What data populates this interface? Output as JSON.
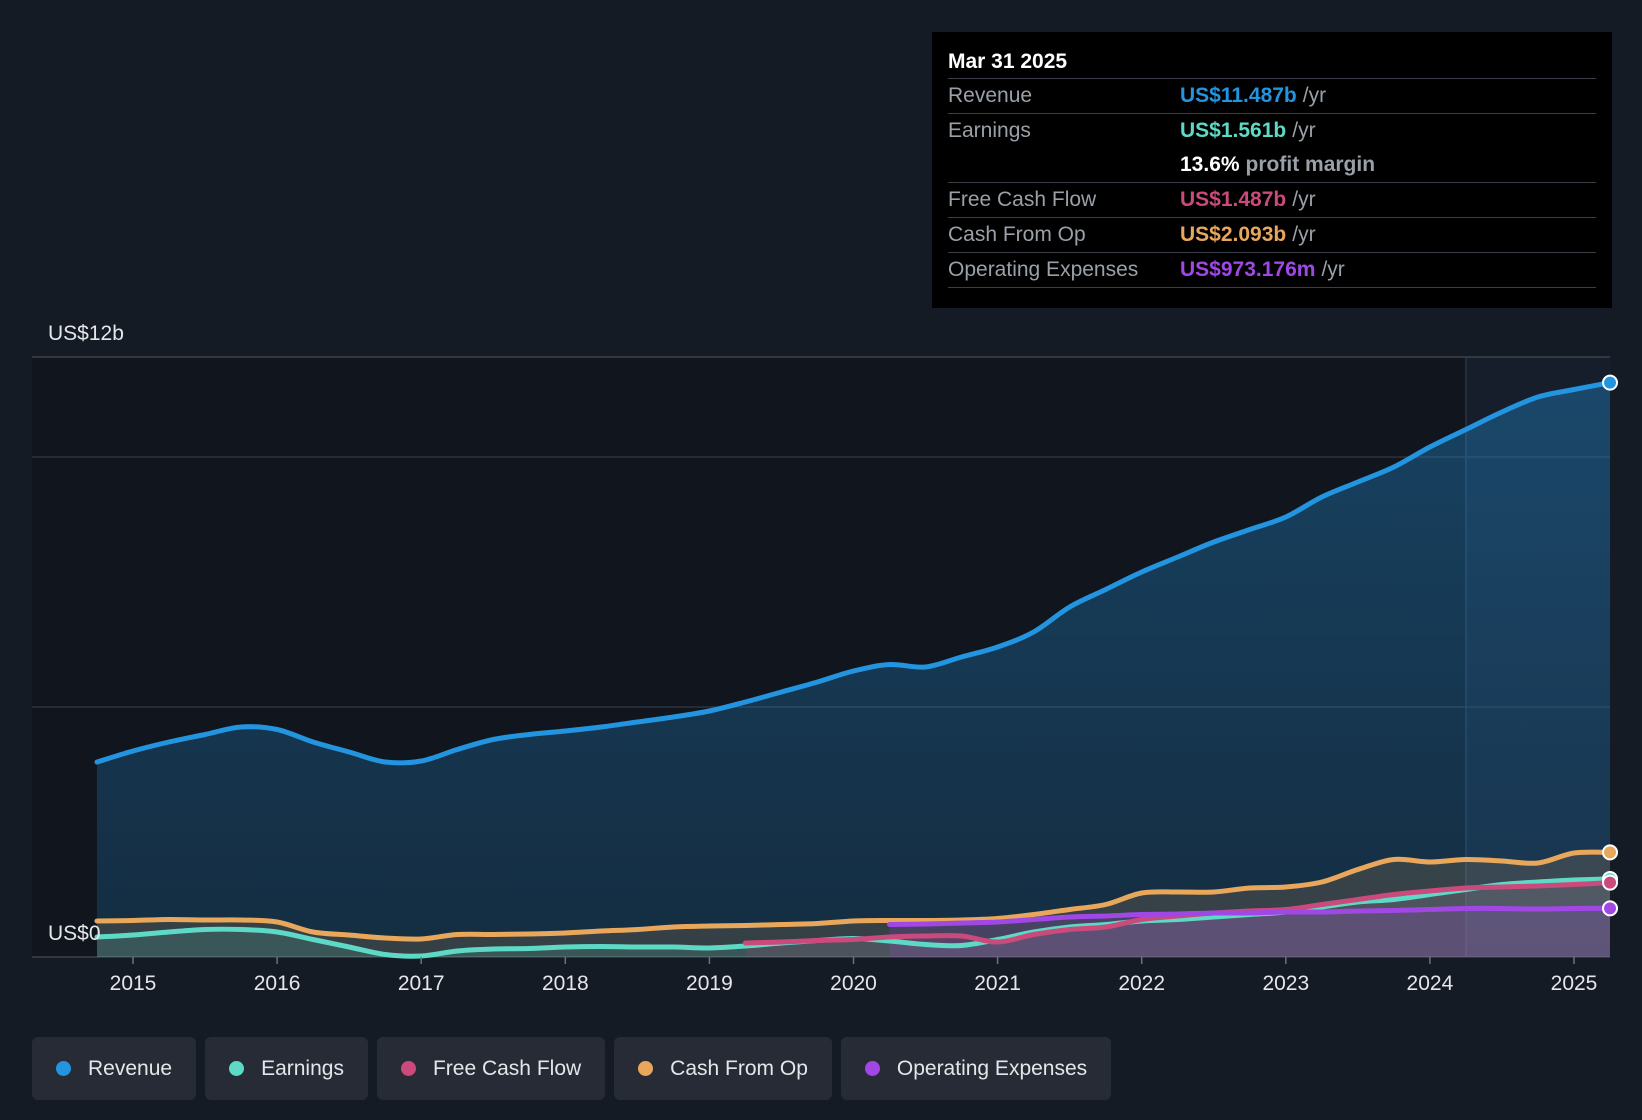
{
  "chart_data": {
    "type": "area",
    "title": "",
    "y_top_label": "US$12b",
    "y_bottom_label": "US$0",
    "ylim": [
      0,
      12
    ],
    "xlim": [
      2014.7,
      2025.25
    ],
    "x_ticks": [
      "2015",
      "2016",
      "2017",
      "2018",
      "2019",
      "2020",
      "2021",
      "2022",
      "2023",
      "2024",
      "2025"
    ],
    "series": [
      {
        "name": "Revenue",
        "key": "revenue",
        "color": "#2394e0",
        "points": [
          [
            2014.75,
            3.9
          ],
          [
            2015.0,
            4.12
          ],
          [
            2015.25,
            4.3
          ],
          [
            2015.5,
            4.45
          ],
          [
            2015.75,
            4.6
          ],
          [
            2016.0,
            4.55
          ],
          [
            2016.25,
            4.3
          ],
          [
            2016.5,
            4.1
          ],
          [
            2016.75,
            3.9
          ],
          [
            2017.0,
            3.92
          ],
          [
            2017.25,
            4.15
          ],
          [
            2017.5,
            4.35
          ],
          [
            2017.75,
            4.45
          ],
          [
            2018.0,
            4.52
          ],
          [
            2018.25,
            4.6
          ],
          [
            2018.5,
            4.7
          ],
          [
            2018.75,
            4.8
          ],
          [
            2019.0,
            4.92
          ],
          [
            2019.25,
            5.1
          ],
          [
            2019.5,
            5.3
          ],
          [
            2019.75,
            5.5
          ],
          [
            2020.0,
            5.72
          ],
          [
            2020.25,
            5.85
          ],
          [
            2020.5,
            5.8
          ],
          [
            2020.75,
            6.0
          ],
          [
            2021.0,
            6.2
          ],
          [
            2021.25,
            6.5
          ],
          [
            2021.5,
            7.0
          ],
          [
            2021.75,
            7.35
          ],
          [
            2022.0,
            7.7
          ],
          [
            2022.25,
            8.0
          ],
          [
            2022.5,
            8.3
          ],
          [
            2022.75,
            8.55
          ],
          [
            2023.0,
            8.8
          ],
          [
            2023.25,
            9.2
          ],
          [
            2023.5,
            9.5
          ],
          [
            2023.75,
            9.8
          ],
          [
            2024.0,
            10.2
          ],
          [
            2024.25,
            10.55
          ],
          [
            2024.5,
            10.9
          ],
          [
            2024.75,
            11.2
          ],
          [
            2025.0,
            11.35
          ],
          [
            2025.25,
            11.487
          ]
        ]
      },
      {
        "name": "Earnings",
        "key": "earnings",
        "color": "#5ed9c6",
        "points": [
          [
            2014.75,
            0.4
          ],
          [
            2015.0,
            0.44
          ],
          [
            2015.25,
            0.5
          ],
          [
            2015.5,
            0.55
          ],
          [
            2015.75,
            0.55
          ],
          [
            2016.0,
            0.5
          ],
          [
            2016.25,
            0.35
          ],
          [
            2016.5,
            0.2
          ],
          [
            2016.75,
            0.05
          ],
          [
            2017.0,
            0.02
          ],
          [
            2017.25,
            0.12
          ],
          [
            2017.5,
            0.16
          ],
          [
            2017.75,
            0.17
          ],
          [
            2018.0,
            0.2
          ],
          [
            2018.25,
            0.21
          ],
          [
            2018.5,
            0.2
          ],
          [
            2018.75,
            0.2
          ],
          [
            2019.0,
            0.18
          ],
          [
            2019.25,
            0.22
          ],
          [
            2019.5,
            0.28
          ],
          [
            2019.75,
            0.33
          ],
          [
            2020.0,
            0.37
          ],
          [
            2020.25,
            0.32
          ],
          [
            2020.5,
            0.25
          ],
          [
            2020.75,
            0.23
          ],
          [
            2021.0,
            0.35
          ],
          [
            2021.25,
            0.5
          ],
          [
            2021.5,
            0.6
          ],
          [
            2021.75,
            0.65
          ],
          [
            2022.0,
            0.72
          ],
          [
            2022.25,
            0.75
          ],
          [
            2022.5,
            0.8
          ],
          [
            2022.75,
            0.85
          ],
          [
            2023.0,
            0.9
          ],
          [
            2023.25,
            1.0
          ],
          [
            2023.5,
            1.1
          ],
          [
            2023.75,
            1.15
          ],
          [
            2024.0,
            1.25
          ],
          [
            2024.25,
            1.35
          ],
          [
            2024.5,
            1.45
          ],
          [
            2024.75,
            1.5
          ],
          [
            2025.0,
            1.54
          ],
          [
            2025.25,
            1.561
          ]
        ]
      },
      {
        "name": "Free Cash Flow",
        "key": "fcf",
        "color": "#c94a7b",
        "points": [
          [
            2019.25,
            0.28
          ],
          [
            2019.5,
            0.3
          ],
          [
            2019.75,
            0.33
          ],
          [
            2020.0,
            0.35
          ],
          [
            2020.25,
            0.4
          ],
          [
            2020.5,
            0.42
          ],
          [
            2020.75,
            0.42
          ],
          [
            2021.0,
            0.3
          ],
          [
            2021.25,
            0.45
          ],
          [
            2021.5,
            0.55
          ],
          [
            2021.75,
            0.6
          ],
          [
            2022.0,
            0.75
          ],
          [
            2022.25,
            0.82
          ],
          [
            2022.5,
            0.88
          ],
          [
            2022.75,
            0.92
          ],
          [
            2023.0,
            0.95
          ],
          [
            2023.25,
            1.05
          ],
          [
            2023.5,
            1.15
          ],
          [
            2023.75,
            1.25
          ],
          [
            2024.0,
            1.32
          ],
          [
            2024.25,
            1.38
          ],
          [
            2024.5,
            1.4
          ],
          [
            2024.75,
            1.42
          ],
          [
            2025.0,
            1.45
          ],
          [
            2025.25,
            1.487
          ]
        ]
      },
      {
        "name": "Cash From Op",
        "key": "cfo",
        "color": "#e9a75b",
        "points": [
          [
            2014.75,
            0.72
          ],
          [
            2015.0,
            0.73
          ],
          [
            2015.25,
            0.75
          ],
          [
            2015.5,
            0.74
          ],
          [
            2015.75,
            0.74
          ],
          [
            2016.0,
            0.7
          ],
          [
            2016.25,
            0.5
          ],
          [
            2016.5,
            0.44
          ],
          [
            2016.75,
            0.38
          ],
          [
            2017.0,
            0.36
          ],
          [
            2017.25,
            0.45
          ],
          [
            2017.5,
            0.45
          ],
          [
            2017.75,
            0.46
          ],
          [
            2018.0,
            0.48
          ],
          [
            2018.25,
            0.52
          ],
          [
            2018.5,
            0.55
          ],
          [
            2018.75,
            0.6
          ],
          [
            2019.0,
            0.62
          ],
          [
            2019.25,
            0.63
          ],
          [
            2019.5,
            0.65
          ],
          [
            2019.75,
            0.67
          ],
          [
            2020.0,
            0.72
          ],
          [
            2020.25,
            0.73
          ],
          [
            2020.5,
            0.73
          ],
          [
            2020.75,
            0.74
          ],
          [
            2021.0,
            0.77
          ],
          [
            2021.25,
            0.85
          ],
          [
            2021.5,
            0.95
          ],
          [
            2021.75,
            1.05
          ],
          [
            2022.0,
            1.28
          ],
          [
            2022.25,
            1.3
          ],
          [
            2022.5,
            1.3
          ],
          [
            2022.75,
            1.38
          ],
          [
            2023.0,
            1.4
          ],
          [
            2023.25,
            1.5
          ],
          [
            2023.5,
            1.75
          ],
          [
            2023.75,
            1.95
          ],
          [
            2024.0,
            1.9
          ],
          [
            2024.25,
            1.95
          ],
          [
            2024.5,
            1.92
          ],
          [
            2024.75,
            1.88
          ],
          [
            2025.0,
            2.08
          ],
          [
            2025.25,
            2.093
          ]
        ]
      },
      {
        "name": "Operating Expenses",
        "key": "opex",
        "color": "#a047e6",
        "points": [
          [
            2020.25,
            0.65
          ],
          [
            2020.5,
            0.66
          ],
          [
            2020.75,
            0.68
          ],
          [
            2021.0,
            0.7
          ],
          [
            2021.25,
            0.75
          ],
          [
            2021.5,
            0.8
          ],
          [
            2021.75,
            0.82
          ],
          [
            2022.0,
            0.85
          ],
          [
            2022.25,
            0.86
          ],
          [
            2022.5,
            0.88
          ],
          [
            2022.75,
            0.88
          ],
          [
            2023.0,
            0.9
          ],
          [
            2023.25,
            0.9
          ],
          [
            2023.5,
            0.92
          ],
          [
            2023.75,
            0.93
          ],
          [
            2024.0,
            0.95
          ],
          [
            2024.25,
            0.97
          ],
          [
            2024.5,
            0.97
          ],
          [
            2024.75,
            0.96
          ],
          [
            2025.0,
            0.97
          ],
          [
            2025.25,
            0.973
          ]
        ]
      }
    ],
    "legend_position": "bottom-left"
  },
  "tooltip": {
    "date": "Mar 31 2025",
    "unit": "/yr",
    "rows": {
      "revenue": {
        "label": "Revenue",
        "value": "US$11.487b"
      },
      "earnings": {
        "label": "Earnings",
        "value": "US$1.561b"
      },
      "margin": {
        "value": "13.6%",
        "text": "profit margin"
      },
      "fcf": {
        "label": "Free Cash Flow",
        "value": "US$1.487b"
      },
      "cfo": {
        "label": "Cash From Op",
        "value": "US$2.093b"
      },
      "opex": {
        "label": "Operating Expenses",
        "value": "US$973.176m"
      }
    }
  },
  "legend": {
    "revenue": "Revenue",
    "earnings": "Earnings",
    "fcf": "Free Cash Flow",
    "cfo": "Cash From Op",
    "opex": "Operating Expenses"
  },
  "colors": {
    "revenue": "#2394e0",
    "earnings": "#5ed9c6",
    "fcf": "#c94a7b",
    "cfo": "#e9a75b",
    "opex": "#a047e6",
    "background": "#151b24"
  }
}
